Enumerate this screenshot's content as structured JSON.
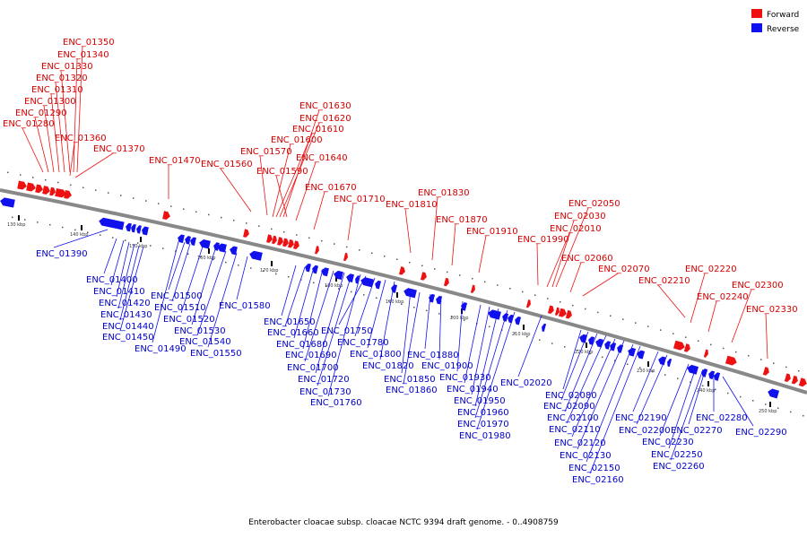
{
  "legend": {
    "forward": {
      "label": "Forward",
      "color": "#ee1111"
    },
    "reverse": {
      "label": "Reverse",
      "color": "#1111ee"
    }
  },
  "caption": "Enterobacter cloacae subsp. cloacae NCTC 9394 draft genome. - 0..4908759",
  "colors": {
    "backbone": "#888888",
    "forward": "#ee1111",
    "reverse": "#1111ee",
    "forward_label": "#d40000",
    "reverse_label": "#0000cc"
  },
  "ticks": [
    "130 kbp",
    "140 kbp",
    "150 kbp",
    "160 kbp",
    "170 kbp",
    "180 kbp",
    "190 kbp",
    "200 kbp",
    "210 kbp",
    "220 kbp",
    "230 kbp",
    "240 kbp",
    "250 kbp"
  ],
  "forward_labels": [
    "ENC_01350",
    "ENC_01340",
    "ENC_01330",
    "ENC_01320",
    "ENC_01310",
    "ENC_01300",
    "ENC_01290",
    "ENC_01280",
    "ENC_01360",
    "ENC_01370",
    "ENC_01470",
    "ENC_01560",
    "ENC_01630",
    "ENC_01620",
    "ENC_01610",
    "ENC_01600",
    "ENC_01570",
    "ENC_01640",
    "ENC_01590",
    "ENC_01670",
    "ENC_01710",
    "ENC_01830",
    "ENC_01810",
    "ENC_01870",
    "ENC_01910",
    "ENC_02050",
    "ENC_02030",
    "ENC_02010",
    "ENC_01990",
    "ENC_02060",
    "ENC_02070",
    "ENC_02220",
    "ENC_02210",
    "ENC_02300",
    "ENC_02240",
    "ENC_02330"
  ],
  "reverse_labels": [
    "ENC_01390",
    "ENC_01400",
    "ENC_01410",
    "ENC_01420",
    "ENC_01430",
    "ENC_01440",
    "ENC_01450",
    "ENC_01490",
    "ENC_01500",
    "ENC_01510",
    "ENC_01520",
    "ENC_01530",
    "ENC_01540",
    "ENC_01550",
    "ENC_01580",
    "ENC_01650",
    "ENC_01660",
    "ENC_01680",
    "ENC_01690",
    "ENC_01700",
    "ENC_01720",
    "ENC_01730",
    "ENC_01760",
    "ENC_01750",
    "ENC_01780",
    "ENC_01800",
    "ENC_01820",
    "ENC_01850",
    "ENC_01860",
    "ENC_01880",
    "ENC_01900",
    "ENC_01930",
    "ENC_01940",
    "ENC_01950",
    "ENC_01960",
    "ENC_01970",
    "ENC_01980",
    "ENC_02020",
    "ENC_02080",
    "ENC_02090",
    "ENC_02100",
    "ENC_02110",
    "ENC_02120",
    "ENC_02130",
    "ENC_02150",
    "ENC_02160",
    "ENC_02190",
    "ENC_02200",
    "ENC_02230",
    "ENC_02250",
    "ENC_02260",
    "ENC_02270",
    "ENC_02280",
    "ENC_02290"
  ]
}
